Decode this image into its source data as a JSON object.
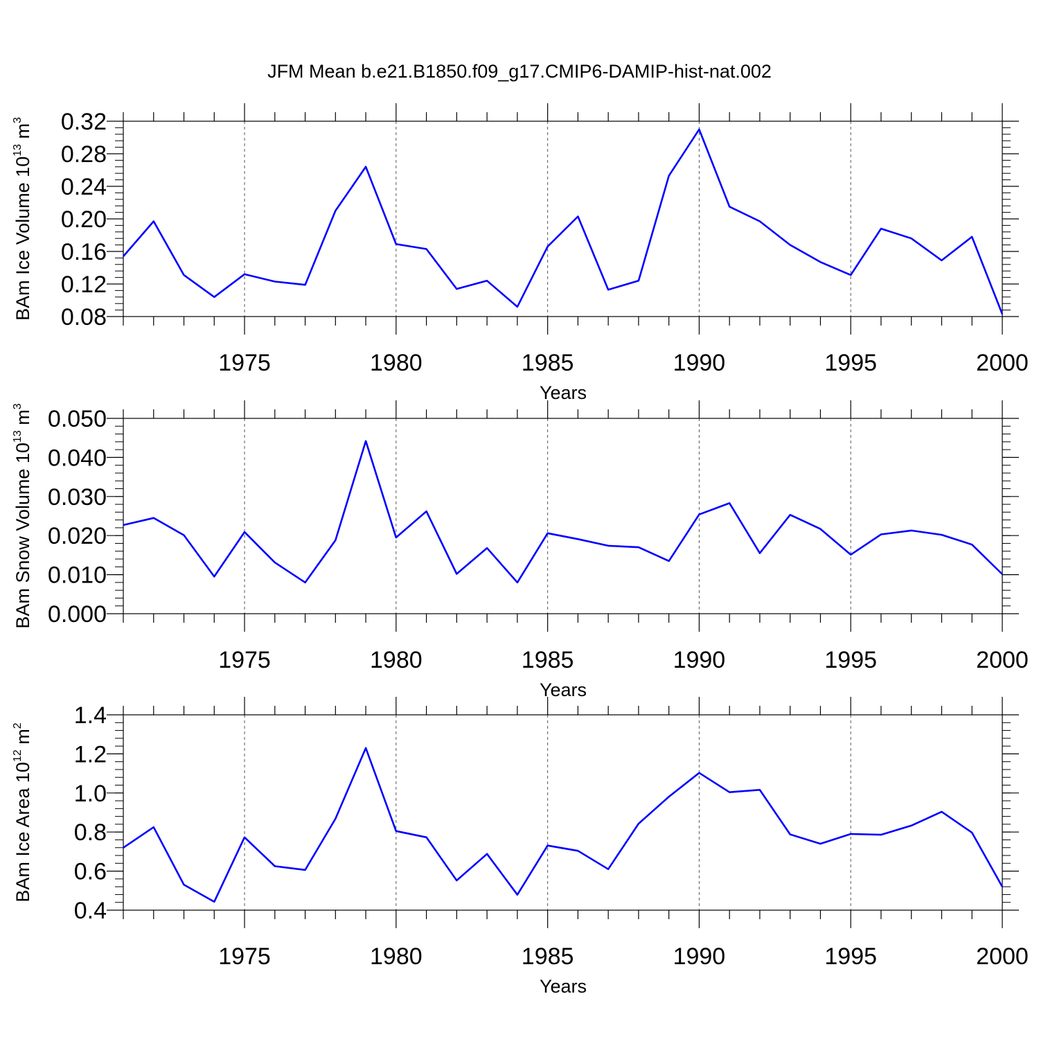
{
  "title": "JFM Mean b.e21.B1850.f09_g17.CMIP6-DAMIP-hist-nat.002",
  "colors": {
    "line": "#0000ff",
    "axis": "#000000",
    "grid": "#555555"
  },
  "chart_data": [
    {
      "type": "line",
      "xlabel": "Years",
      "ylabel": {
        "text": "BAm Ice Volume 10",
        "exp": "13",
        "unit": " m",
        "unit_exp": "3"
      },
      "xlim": [
        1971,
        2000
      ],
      "ylim": [
        0.08,
        0.32
      ],
      "grid": "vertical dashed at major x ticks",
      "x_ticks": [
        1975,
        1980,
        1985,
        1990,
        1995,
        2000
      ],
      "x_tick_labels": [
        "1975",
        "1980",
        "1985",
        "1990",
        "1995",
        "2000"
      ],
      "y_ticks": [
        0.08,
        0.12,
        0.16,
        0.2,
        0.24,
        0.28,
        0.32
      ],
      "y_tick_labels": [
        "0.08",
        "0.12",
        "0.16",
        "0.20",
        "0.24",
        "0.28",
        "0.32"
      ],
      "y_minor_step": 0.008,
      "x": [
        1971,
        1972,
        1973,
        1974,
        1975,
        1976,
        1977,
        1978,
        1979,
        1980,
        1981,
        1982,
        1983,
        1984,
        1985,
        1986,
        1987,
        1988,
        1989,
        1990,
        1991,
        1992,
        1993,
        1994,
        1995,
        1996,
        1997,
        1998,
        1999,
        2000
      ],
      "y": [
        0.154,
        0.197,
        0.131,
        0.104,
        0.132,
        0.123,
        0.119,
        0.21,
        0.264,
        0.169,
        0.163,
        0.114,
        0.124,
        0.092,
        0.166,
        0.203,
        0.113,
        0.124,
        0.253,
        0.31,
        0.215,
        0.197,
        0.168,
        0.147,
        0.131,
        0.188,
        0.176,
        0.149,
        0.178,
        0.083
      ]
    },
    {
      "type": "line",
      "xlabel": "Years",
      "ylabel": {
        "text": "BAm Snow Volume 10",
        "exp": "13",
        "unit": " m",
        "unit_exp": "3"
      },
      "xlim": [
        1971,
        2000
      ],
      "ylim": [
        0.0,
        0.05
      ],
      "grid": "vertical dashed at major x ticks",
      "x_ticks": [
        1975,
        1980,
        1985,
        1990,
        1995,
        2000
      ],
      "x_tick_labels": [
        "1975",
        "1980",
        "1985",
        "1990",
        "1995",
        "2000"
      ],
      "y_ticks": [
        0.0,
        0.01,
        0.02,
        0.03,
        0.04,
        0.05
      ],
      "y_tick_labels": [
        "0.000",
        "0.010",
        "0.020",
        "0.030",
        "0.040",
        "0.050"
      ],
      "y_minor_step": 0.002,
      "x": [
        1971,
        1972,
        1973,
        1974,
        1975,
        1976,
        1977,
        1978,
        1979,
        1980,
        1981,
        1982,
        1983,
        1984,
        1985,
        1986,
        1987,
        1988,
        1989,
        1990,
        1991,
        1992,
        1993,
        1994,
        1995,
        1996,
        1997,
        1998,
        1999,
        2000
      ],
      "y": [
        0.0227,
        0.0245,
        0.0201,
        0.0095,
        0.0209,
        0.0131,
        0.008,
        0.0188,
        0.0442,
        0.0195,
        0.0262,
        0.0102,
        0.0168,
        0.008,
        0.0206,
        0.0191,
        0.0174,
        0.017,
        0.0135,
        0.0254,
        0.0283,
        0.0155,
        0.0253,
        0.0217,
        0.0151,
        0.0203,
        0.0213,
        0.0202,
        0.0177,
        0.0101
      ]
    },
    {
      "type": "line",
      "xlabel": "Years",
      "ylabel": {
        "text": "BAm Ice Area 10",
        "exp": "12",
        "unit": " m",
        "unit_exp": "2"
      },
      "xlim": [
        1971,
        2000
      ],
      "ylim": [
        0.4,
        1.4
      ],
      "grid": "vertical dashed at major x ticks",
      "x_ticks": [
        1975,
        1980,
        1985,
        1990,
        1995,
        2000
      ],
      "x_tick_labels": [
        "1975",
        "1980",
        "1985",
        "1990",
        "1995",
        "2000"
      ],
      "y_ticks": [
        0.4,
        0.6,
        0.8,
        1.0,
        1.2,
        1.4
      ],
      "y_tick_labels": [
        "0.4",
        "0.6",
        "0.8",
        "1.0",
        "1.2",
        "1.4"
      ],
      "y_minor_step": 0.04,
      "x": [
        1971,
        1972,
        1973,
        1974,
        1975,
        1976,
        1977,
        1978,
        1979,
        1980,
        1981,
        1982,
        1983,
        1984,
        1985,
        1986,
        1987,
        1988,
        1989,
        1990,
        1991,
        1992,
        1993,
        1994,
        1995,
        1996,
        1997,
        1998,
        1999,
        2000
      ],
      "y": [
        0.72,
        0.825,
        0.53,
        0.443,
        0.773,
        0.625,
        0.606,
        0.868,
        1.23,
        0.805,
        0.773,
        0.552,
        0.688,
        0.479,
        0.731,
        0.704,
        0.61,
        0.843,
        0.981,
        1.103,
        1.004,
        1.016,
        0.788,
        0.74,
        0.79,
        0.786,
        0.833,
        0.904,
        0.797,
        0.52
      ]
    }
  ]
}
